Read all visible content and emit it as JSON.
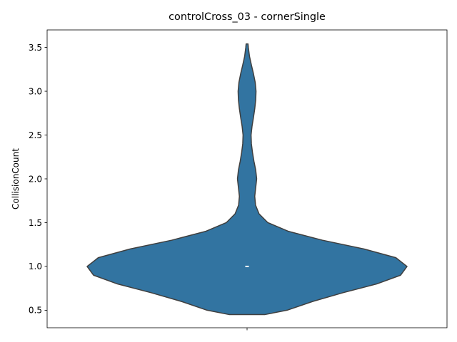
{
  "chart_data": {
    "type": "violin",
    "title": "controlCross_03 - cornerSingle",
    "xlabel": "",
    "ylabel": "CollisionCount",
    "ylim": [
      0.3,
      3.7
    ],
    "yticks": [
      "0.5",
      "1.0",
      "1.5",
      "2.0",
      "2.5",
      "3.0",
      "3.5"
    ],
    "categories": [
      ""
    ],
    "series_color": "#3274a1",
    "outline_color": "#3f3f3f",
    "median": 1.0,
    "quartiles": [
      1.0,
      1.0
    ],
    "data_min": 0.45,
    "data_max": 3.54,
    "density_profile": [
      {
        "y": 0.45,
        "w": 0.11
      },
      {
        "y": 0.5,
        "w": 0.25
      },
      {
        "y": 0.6,
        "w": 0.41
      },
      {
        "y": 0.7,
        "w": 0.6
      },
      {
        "y": 0.8,
        "w": 0.81
      },
      {
        "y": 0.9,
        "w": 0.96
      },
      {
        "y": 1.0,
        "w": 1.0
      },
      {
        "y": 1.1,
        "w": 0.93
      },
      {
        "y": 1.2,
        "w": 0.73
      },
      {
        "y": 1.3,
        "w": 0.47
      },
      {
        "y": 1.4,
        "w": 0.26
      },
      {
        "y": 1.5,
        "w": 0.13
      },
      {
        "y": 1.6,
        "w": 0.075
      },
      {
        "y": 1.7,
        "w": 0.053
      },
      {
        "y": 1.8,
        "w": 0.048
      },
      {
        "y": 1.9,
        "w": 0.054
      },
      {
        "y": 2.0,
        "w": 0.06
      },
      {
        "y": 2.1,
        "w": 0.054
      },
      {
        "y": 2.2,
        "w": 0.043
      },
      {
        "y": 2.3,
        "w": 0.034
      },
      {
        "y": 2.4,
        "w": 0.027
      },
      {
        "y": 2.5,
        "w": 0.025
      },
      {
        "y": 2.6,
        "w": 0.031
      },
      {
        "y": 2.7,
        "w": 0.04
      },
      {
        "y": 2.8,
        "w": 0.048
      },
      {
        "y": 2.9,
        "w": 0.054
      },
      {
        "y": 3.0,
        "w": 0.056
      },
      {
        "y": 3.1,
        "w": 0.051
      },
      {
        "y": 3.2,
        "w": 0.04
      },
      {
        "y": 3.3,
        "w": 0.027
      },
      {
        "y": 3.4,
        "w": 0.015
      },
      {
        "y": 3.5,
        "w": 0.008
      },
      {
        "y": 3.54,
        "w": 0.006
      }
    ]
  }
}
